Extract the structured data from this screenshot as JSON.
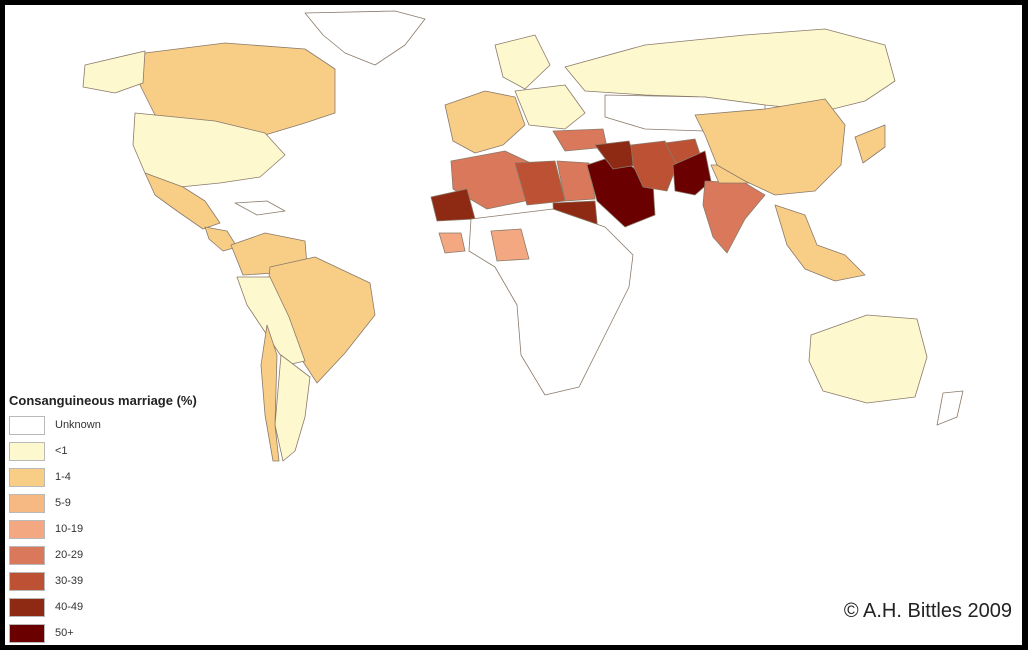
{
  "map": {
    "legend_title": "Consanguineous marriage (%)",
    "legend": [
      {
        "label": "Unknown",
        "color": "#ffffff"
      },
      {
        "label": "<1",
        "color": "#fdf8cd"
      },
      {
        "label": "1-4",
        "color": "#f8cd86"
      },
      {
        "label": "5-9",
        "color": "#f6b984"
      },
      {
        "label": "10-19",
        "color": "#f3a882"
      },
      {
        "label": "20-29",
        "color": "#d9785a"
      },
      {
        "label": "30-39",
        "color": "#bc5233"
      },
      {
        "label": "40-49",
        "color": "#8e2a14"
      },
      {
        "label": "50+",
        "color": "#6a0000"
      }
    ],
    "copyright": "© A.H. Bittles 2009",
    "regions": [
      {
        "name": "greenland",
        "category": "Unknown"
      },
      {
        "name": "canada",
        "category": "1-4"
      },
      {
        "name": "alaska",
        "category": "<1"
      },
      {
        "name": "usa",
        "category": "<1"
      },
      {
        "name": "mexico",
        "category": "1-4"
      },
      {
        "name": "central-america",
        "category": "1-4"
      },
      {
        "name": "caribbean",
        "category": "Unknown"
      },
      {
        "name": "colombia-venezuela",
        "category": "1-4"
      },
      {
        "name": "brazil",
        "category": "1-4"
      },
      {
        "name": "peru-bolivia",
        "category": "<1"
      },
      {
        "name": "argentina",
        "category": "<1"
      },
      {
        "name": "chile",
        "category": "1-4"
      },
      {
        "name": "russia",
        "category": "<1"
      },
      {
        "name": "scandinavia",
        "category": "<1"
      },
      {
        "name": "western-europe",
        "category": "1-4"
      },
      {
        "name": "eastern-europe",
        "category": "<1"
      },
      {
        "name": "kazakhstan-mongolia",
        "category": "Unknown"
      },
      {
        "name": "turkey",
        "category": "20-29"
      },
      {
        "name": "morocco-algeria",
        "category": "20-29"
      },
      {
        "name": "western-sahara-mauritania",
        "category": "40-49"
      },
      {
        "name": "libya",
        "category": "30-39"
      },
      {
        "name": "egypt",
        "category": "20-29"
      },
      {
        "name": "sudan",
        "category": "40-49"
      },
      {
        "name": "saudi-arabia",
        "category": "50+"
      },
      {
        "name": "iraq-syria",
        "category": "40-49"
      },
      {
        "name": "iran",
        "category": "30-39"
      },
      {
        "name": "afghanistan",
        "category": "30-39"
      },
      {
        "name": "pakistan",
        "category": "50+"
      },
      {
        "name": "india",
        "category": "20-29"
      },
      {
        "name": "india-north",
        "category": "1-4"
      },
      {
        "name": "china",
        "category": "1-4"
      },
      {
        "name": "japan",
        "category": "1-4"
      },
      {
        "name": "sub-saharan-africa",
        "category": "Unknown"
      },
      {
        "name": "nigeria",
        "category": "10-19"
      },
      {
        "name": "west-africa-coast",
        "category": "10-19"
      },
      {
        "name": "southeast-asia",
        "category": "1-4"
      },
      {
        "name": "australia",
        "category": "<1"
      },
      {
        "name": "new-zealand",
        "category": "Unknown"
      }
    ]
  }
}
